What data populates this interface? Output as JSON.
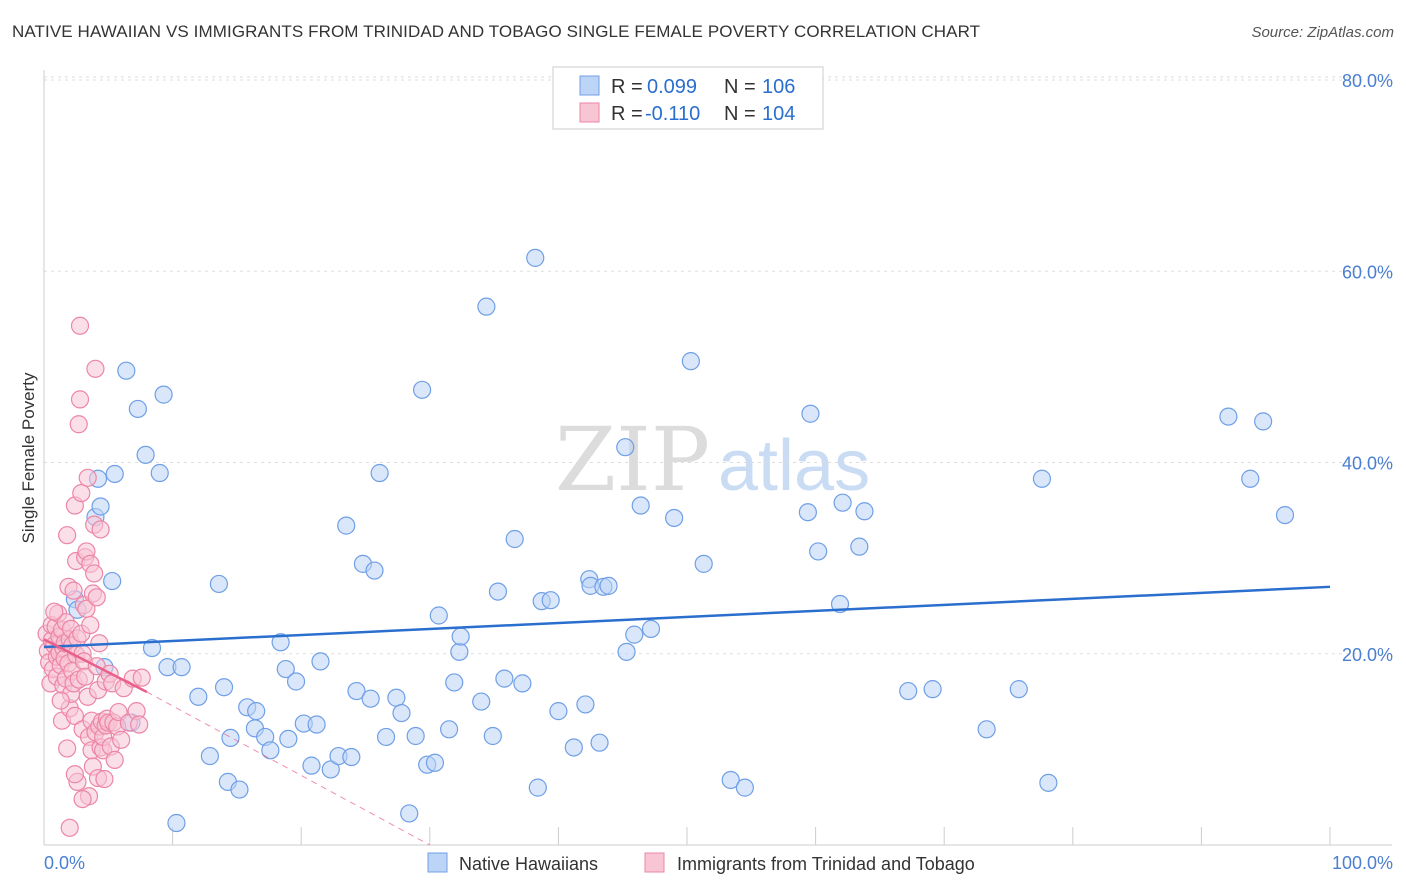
{
  "header": {
    "title": "NATIVE HAWAIIAN VS IMMIGRANTS FROM TRINIDAD AND TOBAGO SINGLE FEMALE POVERTY CORRELATION CHART",
    "source": "Source: ZipAtlas.com"
  },
  "watermark": {
    "zip": "ZIP",
    "atlas": "atlas"
  },
  "colors": {
    "blue_point_fill": "#bcd4f5",
    "blue_point_stroke": "#6f9fe6",
    "blue_line": "#2a6fce",
    "pink_point_fill": "#f8c5d5",
    "pink_point_stroke": "#ec86a6",
    "pink_line": "#e8608a",
    "axis_label_blue": "#4a7fd1",
    "grid": "#dddddd"
  },
  "legend": {
    "rows": [
      {
        "r_label": "R =",
        "r_value": "0.099",
        "n_label": "N =",
        "n_value": "106"
      },
      {
        "r_label": "R =",
        "r_value": "-0.110",
        "n_label": "N =",
        "n_value": "104"
      }
    ]
  },
  "chart_data": {
    "type": "scatter",
    "title": "NATIVE HAWAIIAN VS IMMIGRANTS FROM TRINIDAD AND TOBAGO SINGLE FEMALE POVERTY CORRELATION CHART",
    "xlabel": "",
    "ylabel": "Single Female Poverty",
    "xlim": [
      0,
      100
    ],
    "ylim": [
      0,
      80
    ],
    "x_tick_labels": [
      "0.0%",
      "100.0%"
    ],
    "y_tick_values": [
      20,
      40,
      60,
      80
    ],
    "y_tick_labels": [
      "20.0%",
      "40.0%",
      "60.0%",
      "80.0%"
    ],
    "grid": true,
    "legend_position": "top-center",
    "series": [
      {
        "name": "Native Hawaiians",
        "R": 0.099,
        "N": 106,
        "trend": {
          "x": [
            0,
            100
          ],
          "y": [
            20.7,
            27.0
          ]
        },
        "points": [
          [
            2.4,
            25.7
          ],
          [
            2.6,
            24.6
          ],
          [
            4.0,
            34.3
          ],
          [
            4.2,
            38.3
          ],
          [
            4.4,
            35.4
          ],
          [
            4.7,
            18.6
          ],
          [
            5.3,
            27.6
          ],
          [
            5.5,
            38.8
          ],
          [
            6.4,
            49.6
          ],
          [
            6.8,
            12.8
          ],
          [
            7.3,
            45.6
          ],
          [
            7.9,
            40.8
          ],
          [
            8.4,
            20.6
          ],
          [
            9.0,
            38.9
          ],
          [
            9.3,
            47.1
          ],
          [
            9.6,
            18.6
          ],
          [
            10.3,
            2.3
          ],
          [
            10.7,
            18.6
          ],
          [
            12.0,
            15.5
          ],
          [
            12.9,
            9.3
          ],
          [
            13.6,
            27.3
          ],
          [
            14.0,
            16.5
          ],
          [
            14.3,
            6.6
          ],
          [
            14.5,
            11.2
          ],
          [
            15.2,
            5.8
          ],
          [
            15.8,
            14.4
          ],
          [
            16.4,
            12.2
          ],
          [
            16.5,
            14.0
          ],
          [
            17.2,
            11.3
          ],
          [
            17.6,
            9.9
          ],
          [
            18.4,
            21.2
          ],
          [
            18.8,
            18.4
          ],
          [
            19.0,
            11.1
          ],
          [
            19.6,
            17.1
          ],
          [
            20.2,
            12.7
          ],
          [
            20.8,
            8.3
          ],
          [
            21.2,
            12.6
          ],
          [
            21.5,
            19.2
          ],
          [
            22.3,
            7.9
          ],
          [
            22.9,
            9.3
          ],
          [
            23.5,
            33.4
          ],
          [
            23.9,
            9.2
          ],
          [
            24.3,
            16.1
          ],
          [
            24.8,
            29.4
          ],
          [
            25.4,
            15.3
          ],
          [
            25.7,
            28.7
          ],
          [
            26.1,
            38.9
          ],
          [
            26.6,
            11.3
          ],
          [
            27.4,
            15.4
          ],
          [
            27.8,
            13.8
          ],
          [
            28.4,
            3.3
          ],
          [
            28.9,
            11.4
          ],
          [
            29.4,
            47.6
          ],
          [
            29.8,
            8.4
          ],
          [
            30.4,
            8.6
          ],
          [
            30.7,
            24.0
          ],
          [
            31.5,
            12.1
          ],
          [
            31.9,
            17.0
          ],
          [
            32.3,
            20.2
          ],
          [
            32.4,
            21.8
          ],
          [
            34.0,
            15.0
          ],
          [
            34.4,
            56.3
          ],
          [
            34.9,
            11.4
          ],
          [
            35.3,
            26.5
          ],
          [
            35.8,
            17.4
          ],
          [
            36.6,
            32.0
          ],
          [
            37.2,
            16.9
          ],
          [
            38.2,
            61.4
          ],
          [
            38.4,
            6.0
          ],
          [
            38.7,
            25.5
          ],
          [
            39.4,
            25.6
          ],
          [
            40.0,
            14.0
          ],
          [
            41.2,
            10.2
          ],
          [
            42.1,
            14.7
          ],
          [
            42.4,
            27.8
          ],
          [
            42.5,
            27.1
          ],
          [
            43.2,
            10.7
          ],
          [
            43.5,
            27.0
          ],
          [
            43.9,
            27.1
          ],
          [
            45.2,
            41.6
          ],
          [
            45.3,
            20.2
          ],
          [
            45.9,
            22.0
          ],
          [
            46.4,
            35.5
          ],
          [
            47.2,
            22.6
          ],
          [
            49.0,
            34.2
          ],
          [
            51.3,
            29.4
          ],
          [
            50.3,
            50.6
          ],
          [
            53.4,
            6.8
          ],
          [
            54.5,
            6.0
          ],
          [
            59.4,
            34.8
          ],
          [
            59.6,
            45.1
          ],
          [
            60.2,
            30.7
          ],
          [
            61.9,
            25.2
          ],
          [
            62.1,
            35.8
          ],
          [
            63.4,
            31.2
          ],
          [
            63.8,
            34.9
          ],
          [
            67.2,
            16.1
          ],
          [
            69.1,
            16.3
          ],
          [
            73.3,
            12.1
          ],
          [
            75.8,
            16.3
          ],
          [
            77.6,
            38.3
          ],
          [
            78.1,
            6.5
          ],
          [
            92.1,
            44.8
          ],
          [
            93.8,
            38.3
          ],
          [
            94.8,
            44.3
          ],
          [
            96.5,
            34.5
          ]
        ]
      },
      {
        "name": "Immigrants from Trinidad and Tobago",
        "R": -0.11,
        "N": 104,
        "trend": {
          "x": [
            0,
            8.0
          ],
          "y": [
            21.5,
            16.0
          ]
        },
        "trend_dashed": {
          "x": [
            8.0,
            30.0
          ],
          "y": [
            16.0,
            0.0
          ]
        },
        "points": [
          [
            0.2,
            22.1
          ],
          [
            0.3,
            20.3
          ],
          [
            0.4,
            19.1
          ],
          [
            0.5,
            16.9
          ],
          [
            0.6,
            21.4
          ],
          [
            0.6,
            23.0
          ],
          [
            0.7,
            18.4
          ],
          [
            0.8,
            20.9
          ],
          [
            0.9,
            22.8
          ],
          [
            1.0,
            19.7
          ],
          [
            1.0,
            17.6
          ],
          [
            1.1,
            24.2
          ],
          [
            1.2,
            21.8
          ],
          [
            1.2,
            20.1
          ],
          [
            1.3,
            18.8
          ],
          [
            1.4,
            22.5
          ],
          [
            1.4,
            13.0
          ],
          [
            1.5,
            16.7
          ],
          [
            1.5,
            20.6
          ],
          [
            1.6,
            19.5
          ],
          [
            1.6,
            21.1
          ],
          [
            1.7,
            23.3
          ],
          [
            1.7,
            17.4
          ],
          [
            1.8,
            32.4
          ],
          [
            1.8,
            10.1
          ],
          [
            1.9,
            19.0
          ],
          [
            1.9,
            27.0
          ],
          [
            2.0,
            21.5
          ],
          [
            2.0,
            14.3
          ],
          [
            2.1,
            15.8
          ],
          [
            2.1,
            22.6
          ],
          [
            2.2,
            18.2
          ],
          [
            2.2,
            20.9
          ],
          [
            2.3,
            16.9
          ],
          [
            2.3,
            26.6
          ],
          [
            2.4,
            13.5
          ],
          [
            2.4,
            35.5
          ],
          [
            2.5,
            29.7
          ],
          [
            2.5,
            19.9
          ],
          [
            2.6,
            6.6
          ],
          [
            2.6,
            21.6
          ],
          [
            2.7,
            17.3
          ],
          [
            2.7,
            44.0
          ],
          [
            2.8,
            46.6
          ],
          [
            2.8,
            54.3
          ],
          [
            2.9,
            36.8
          ],
          [
            2.9,
            22.1
          ],
          [
            3.0,
            20.0
          ],
          [
            3.0,
            12.1
          ],
          [
            3.1,
            25.1
          ],
          [
            3.1,
            19.2
          ],
          [
            3.2,
            17.6
          ],
          [
            3.2,
            30.1
          ],
          [
            3.3,
            30.7
          ],
          [
            3.3,
            24.7
          ],
          [
            3.4,
            15.5
          ],
          [
            3.4,
            38.4
          ],
          [
            3.5,
            5.1
          ],
          [
            3.5,
            11.3
          ],
          [
            3.6,
            23.0
          ],
          [
            3.6,
            29.4
          ],
          [
            3.7,
            9.9
          ],
          [
            3.7,
            13.0
          ],
          [
            3.8,
            8.2
          ],
          [
            3.8,
            26.3
          ],
          [
            3.9,
            28.4
          ],
          [
            3.9,
            33.5
          ],
          [
            4.0,
            49.8
          ],
          [
            4.0,
            11.8
          ],
          [
            4.1,
            25.9
          ],
          [
            4.1,
            18.7
          ],
          [
            4.2,
            7.0
          ],
          [
            4.2,
            16.2
          ],
          [
            4.3,
            21.1
          ],
          [
            4.3,
            12.4
          ],
          [
            4.4,
            10.2
          ],
          [
            4.4,
            33.0
          ],
          [
            4.5,
            12.9
          ],
          [
            4.6,
            9.9
          ],
          [
            4.6,
            11.3
          ],
          [
            4.7,
            6.9
          ],
          [
            4.8,
            12.5
          ],
          [
            4.8,
            17.1
          ],
          [
            4.9,
            13.2
          ],
          [
            5.0,
            12.8
          ],
          [
            5.1,
            17.9
          ],
          [
            5.2,
            10.3
          ],
          [
            5.3,
            16.9
          ],
          [
            5.4,
            12.8
          ],
          [
            5.5,
            8.9
          ],
          [
            5.7,
            12.4
          ],
          [
            5.8,
            13.9
          ],
          [
            6.0,
            11.0
          ],
          [
            6.2,
            16.4
          ],
          [
            6.6,
            12.8
          ],
          [
            6.9,
            17.4
          ],
          [
            7.2,
            14.0
          ],
          [
            7.4,
            12.6
          ],
          [
            7.6,
            17.5
          ],
          [
            2.0,
            1.8
          ],
          [
            2.4,
            7.4
          ],
          [
            3.0,
            4.8
          ],
          [
            0.8,
            24.4
          ],
          [
            1.3,
            15.1
          ]
        ]
      }
    ]
  },
  "bottom_legend": {
    "items": [
      {
        "label": "Native Hawaiians"
      },
      {
        "label": "Immigrants from Trinidad and Tobago"
      }
    ]
  }
}
